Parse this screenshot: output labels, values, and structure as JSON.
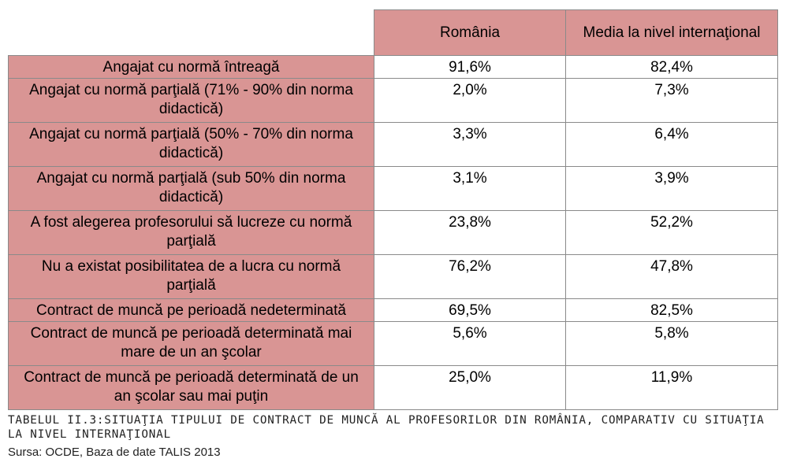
{
  "table": {
    "headers": [
      "România",
      "Media la nivel internaţional"
    ],
    "rows": [
      {
        "label": "Angajat cu normă întreagă",
        "romania": "91,6%",
        "international": "82,4%"
      },
      {
        "label": "Angajat cu normă parţială (71% - 90% din norma didactică)",
        "romania": "2,0%",
        "international": "7,3%"
      },
      {
        "label": "Angajat cu normă parţială (50% - 70% din norma didactică)",
        "romania": "3,3%",
        "international": "6,4%"
      },
      {
        "label": "Angajat cu normă parţială (sub 50% din norma didactică)",
        "romania": "3,1%",
        "international": "3,9%"
      },
      {
        "label": "A fost alegerea profesorului să lucreze cu normă parţială",
        "romania": "23,8%",
        "international": "52,2%"
      },
      {
        "label": "Nu a existat posibilitatea de a lucra cu normă parţială",
        "romania": "76,2%",
        "international": "47,8%"
      },
      {
        "label": "Contract de muncă pe perioadă nedeterminată",
        "romania": "69,5%",
        "international": "82,5%"
      },
      {
        "label": "Contract de muncă pe perioadă determinată mai mare de un an şcolar",
        "romania": "5,6%",
        "international": "5,8%"
      },
      {
        "label": "Contract de muncă pe perioadă determinată de un an şcolar sau mai puţin",
        "romania": "25,0%",
        "international": "11,9%"
      }
    ]
  },
  "caption": "TABELUL II.3:SITUAŢIA TIPULUI DE CONTRACT DE MUNCĂ AL PROFESORILOR DIN ROMÂNIA, COMPARATIV CU SITUAŢIA LA NIVEL INTERNAŢIONAL",
  "source": "Sursa: OCDE, Baza de date TALIS 2013",
  "colors": {
    "header_fill": "#d99594",
    "border": "#8a8a8a"
  }
}
